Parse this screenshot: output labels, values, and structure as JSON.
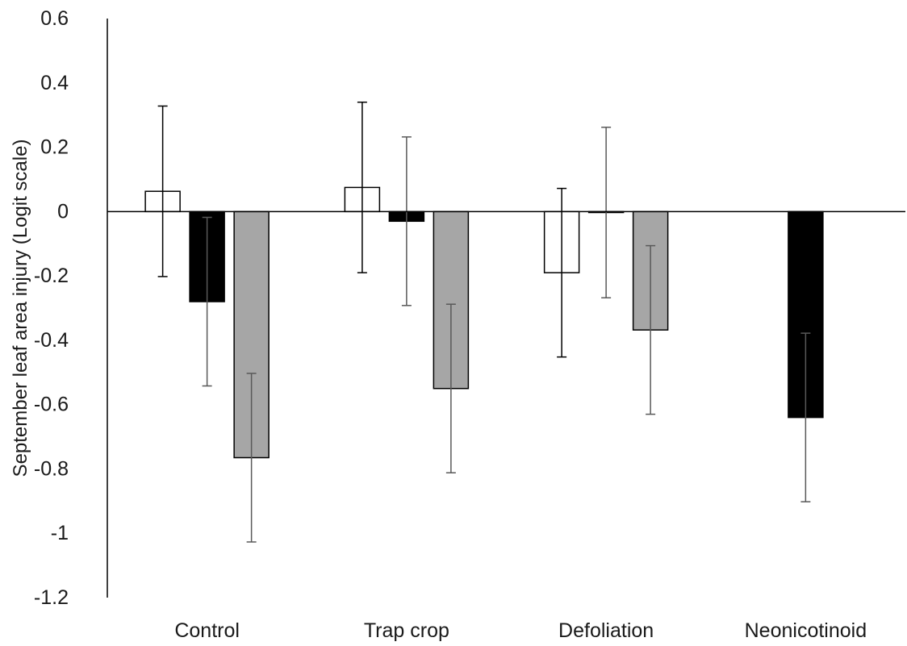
{
  "chart_data": {
    "type": "bar",
    "title": "",
    "xlabel": "",
    "ylabel": "September leaf area injury (Logit scale)",
    "ylim": [
      -1.2,
      0.6
    ],
    "yticks": [
      0.6,
      0.4,
      0.2,
      0,
      -0.2,
      -0.4,
      -0.6,
      -0.8,
      -1,
      -1.2
    ],
    "ytick_labels": [
      "0.6",
      "0.4",
      "0.2",
      "0",
      "-0.2",
      "-0.4",
      "-0.6",
      "-0.8",
      "-1",
      "-1.2"
    ],
    "categories": [
      "Control",
      "Trap crop",
      "Defoliation",
      "Neonicotinoid"
    ],
    "grid": false,
    "legend": "none",
    "series": [
      {
        "fill": "#ffffff",
        "stroke": "#000000",
        "error_color": "#000000",
        "values": [
          0.063,
          0.075,
          -0.19,
          null
        ],
        "errors": [
          0.265,
          0.265,
          0.262,
          null
        ]
      },
      {
        "fill": "#000000",
        "stroke": "#000000",
        "error_color": "#595959",
        "values": [
          -0.28,
          -0.03,
          -0.003,
          -0.64
        ],
        "errors": [
          0.262,
          0.262,
          0.265,
          0.262
        ]
      },
      {
        "fill": "#a6a6a6",
        "stroke": "#000000",
        "error_color": "#595959",
        "values": [
          -0.765,
          -0.55,
          -0.368,
          null
        ],
        "errors": [
          0.262,
          0.262,
          0.262,
          null
        ]
      }
    ]
  }
}
